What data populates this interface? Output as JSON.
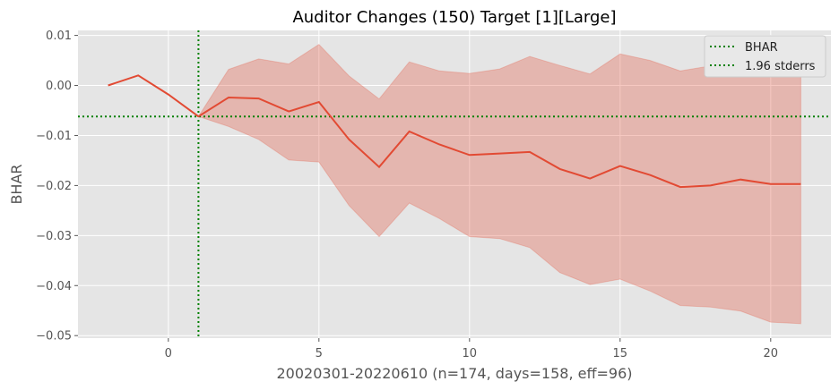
{
  "chart_data": {
    "type": "line",
    "title": "Auditor Changes (150) Target [1][Large]",
    "xlabel": "20020301-20220610 (n=174, days=158, eff=96)",
    "ylabel": "BHAR",
    "xlim": [
      -3,
      22
    ],
    "ylim": [
      -0.0505,
      0.011
    ],
    "xticks": [
      0,
      5,
      10,
      15,
      20
    ],
    "xtick_labels": [
      "0",
      "5",
      "10",
      "15",
      "20"
    ],
    "yticks": [
      -0.05,
      -0.04,
      -0.03,
      -0.02,
      -0.01,
      0.0,
      0.01
    ],
    "ytick_labels": [
      "−0.05",
      "−0.04",
      "−0.03",
      "−0.02",
      "−0.01",
      "0.00",
      "0.01"
    ],
    "grid": true,
    "legend_position": "top-right",
    "legend": [
      "BHAR",
      "1.96 stderrs"
    ],
    "colors": {
      "background": "#e5e5e5",
      "line": "#e24a33",
      "band": "#e24a33",
      "reference": "#008000",
      "grid": "#ffffff"
    },
    "x": [
      -2,
      -1,
      0,
      1,
      2,
      3,
      4,
      5,
      6,
      7,
      8,
      9,
      10,
      11,
      12,
      13,
      14,
      15,
      16,
      17,
      18,
      19,
      20,
      21
    ],
    "series": [
      {
        "values": [
          0.0,
          0.002,
          -0.0018,
          -0.0062,
          -0.0024,
          -0.0026,
          -0.0052,
          -0.0033,
          -0.0108,
          -0.0163,
          -0.0092,
          -0.0118,
          -0.0139,
          -0.0136,
          -0.0133,
          -0.0167,
          -0.0186,
          -0.0161,
          -0.0179,
          -0.0203,
          -0.02,
          -0.0188,
          -0.0197,
          -0.0197
        ],
        "upper": [
          0.0,
          0.002,
          -0.0018,
          -0.0062,
          0.0032,
          0.0053,
          0.0043,
          0.0082,
          0.0019,
          -0.0027,
          0.0047,
          0.0029,
          0.0024,
          0.0033,
          0.0058,
          0.004,
          0.0023,
          0.0063,
          0.005,
          0.0029,
          0.0039,
          0.0073,
          0.0082,
          0.008
        ],
        "lower": [
          0.0,
          0.002,
          -0.0018,
          -0.0062,
          -0.0082,
          -0.0108,
          -0.0149,
          -0.0153,
          -0.024,
          -0.0302,
          -0.0235,
          -0.0266,
          -0.0302,
          -0.0306,
          -0.0324,
          -0.0374,
          -0.0398,
          -0.0387,
          -0.0411,
          -0.044,
          -0.0443,
          -0.0451,
          -0.0473,
          -0.0476
        ]
      }
    ],
    "reference_lines": {
      "vertical_x": 1,
      "horizontal_y": -0.0062
    }
  }
}
